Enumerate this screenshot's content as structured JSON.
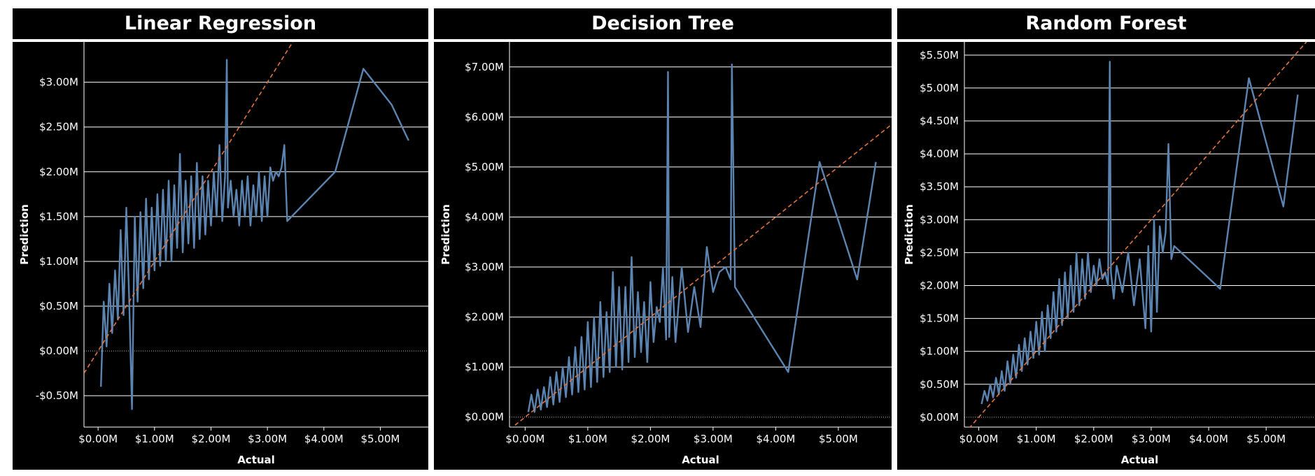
{
  "chart_data": [
    {
      "type": "line",
      "title": "Linear Regression",
      "xlabel": "Actual",
      "ylabel": "Prediction",
      "xlim": [
        -0.25,
        5.85
      ],
      "ylim": [
        -0.85,
        3.45
      ],
      "xticks": [
        0,
        1,
        2,
        3,
        4,
        5
      ],
      "xtick_labels": [
        "$0.00M",
        "$1.00M",
        "$2.00M",
        "$3.00M",
        "$4.00M",
        "$5.00M"
      ],
      "yticks": [
        -0.5,
        0,
        0.5,
        1,
        1.5,
        2,
        2.5,
        3
      ],
      "ytick_labels": [
        "-$0.50M",
        "$0.00M",
        "$0.50M",
        "$1.00M",
        "$1.50M",
        "$2.00M",
        "$2.50M",
        "$3.00M"
      ],
      "units": "$M",
      "grid": true,
      "series": [
        {
          "name": "",
          "color": "#5b84b1",
          "x": [
            0.05,
            0.1,
            0.15,
            0.2,
            0.25,
            0.3,
            0.35,
            0.4,
            0.45,
            0.5,
            0.55,
            0.6,
            0.65,
            0.7,
            0.75,
            0.8,
            0.85,
            0.9,
            0.95,
            1.0,
            1.05,
            1.1,
            1.15,
            1.2,
            1.25,
            1.3,
            1.35,
            1.4,
            1.45,
            1.5,
            1.55,
            1.6,
            1.65,
            1.7,
            1.75,
            1.8,
            1.85,
            1.9,
            1.95,
            2.0,
            2.05,
            2.1,
            2.15,
            2.2,
            2.25,
            2.28,
            2.3,
            2.35,
            2.4,
            2.45,
            2.5,
            2.55,
            2.6,
            2.65,
            2.7,
            2.75,
            2.8,
            2.85,
            2.9,
            2.95,
            3.0,
            3.05,
            3.1,
            3.15,
            3.2,
            3.25,
            3.3,
            3.35,
            4.2,
            4.7,
            5.2,
            5.5
          ],
          "y": [
            -0.4,
            0.55,
            0.05,
            0.75,
            0.2,
            0.9,
            0.35,
            1.35,
            0.4,
            1.6,
            0.6,
            -0.65,
            1.5,
            0.55,
            1.55,
            0.7,
            1.7,
            0.8,
            1.6,
            0.9,
            1.75,
            0.95,
            1.8,
            1.0,
            1.9,
            1.0,
            1.85,
            1.15,
            2.2,
            1.1,
            1.9,
            1.2,
            1.95,
            1.15,
            2.1,
            1.25,
            1.95,
            1.3,
            1.9,
            1.4,
            2.0,
            1.5,
            2.3,
            1.45,
            1.95,
            3.25,
            1.6,
            1.9,
            1.5,
            1.8,
            1.4,
            1.9,
            1.5,
            1.95,
            1.4,
            1.85,
            1.5,
            2.0,
            1.45,
            1.95,
            1.5,
            2.05,
            1.9,
            2.0,
            1.95,
            2.05,
            2.3,
            1.45,
            2.0,
            3.15,
            2.75,
            2.35
          ]
        }
      ],
      "reference_line": {
        "label": "",
        "color": "#e0743a",
        "style": "dashed",
        "slope": 1,
        "intercept": 0
      }
    },
    {
      "type": "line",
      "title": "Decision Tree",
      "xlabel": "Actual",
      "ylabel": "Prediction",
      "xlim": [
        -0.25,
        5.85
      ],
      "ylim": [
        -0.2,
        7.5
      ],
      "xticks": [
        0,
        1,
        2,
        3,
        4,
        5
      ],
      "xtick_labels": [
        "$0.00M",
        "$1.00M",
        "$2.00M",
        "$3.00M",
        "$4.00M",
        "$5.00M"
      ],
      "yticks": [
        0,
        1,
        2,
        3,
        4,
        5,
        6,
        7
      ],
      "ytick_labels": [
        "$0.00M",
        "$1.00M",
        "$2.00M",
        "$3.00M",
        "$4.00M",
        "$5.00M",
        "$6.00M",
        "$7.00M"
      ],
      "units": "$M",
      "grid": true,
      "series": [
        {
          "name": "",
          "color": "#5b84b1",
          "x": [
            0.05,
            0.1,
            0.15,
            0.2,
            0.25,
            0.3,
            0.35,
            0.4,
            0.45,
            0.5,
            0.55,
            0.6,
            0.65,
            0.7,
            0.75,
            0.8,
            0.85,
            0.9,
            0.95,
            1.0,
            1.05,
            1.1,
            1.15,
            1.2,
            1.25,
            1.3,
            1.35,
            1.4,
            1.45,
            1.5,
            1.55,
            1.6,
            1.65,
            1.7,
            1.75,
            1.8,
            1.85,
            1.9,
            1.95,
            2.0,
            2.05,
            2.1,
            2.15,
            2.2,
            2.25,
            2.28,
            2.3,
            2.35,
            2.4,
            2.5,
            2.6,
            2.7,
            2.8,
            2.9,
            3.0,
            3.1,
            3.2,
            3.28,
            3.3,
            3.35,
            4.2,
            4.7,
            5.3,
            5.6
          ],
          "y": [
            0.1,
            0.45,
            0.1,
            0.55,
            0.15,
            0.6,
            0.2,
            0.8,
            0.25,
            0.9,
            0.3,
            1.0,
            0.4,
            1.2,
            0.45,
            1.4,
            0.5,
            1.6,
            0.55,
            1.9,
            0.6,
            2.0,
            0.7,
            2.3,
            0.8,
            2.1,
            0.9,
            2.9,
            1.0,
            2.6,
            0.95,
            2.6,
            1.1,
            3.2,
            1.2,
            2.5,
            1.3,
            2.3,
            1.1,
            2.7,
            1.5,
            2.2,
            1.9,
            3.0,
            1.55,
            6.9,
            1.6,
            2.8,
            1.5,
            3.0,
            1.7,
            2.6,
            1.8,
            3.4,
            2.5,
            2.9,
            3.0,
            2.75,
            7.05,
            2.6,
            0.9,
            5.1,
            2.75,
            5.1
          ]
        }
      ],
      "reference_line": {
        "label": "",
        "color": "#e0743a",
        "style": "dashed",
        "slope": 1,
        "intercept": 0
      }
    },
    {
      "type": "line",
      "title": "Random Forest",
      "xlabel": "Actual",
      "ylabel": "Prediction",
      "xlim": [
        -0.25,
        5.85
      ],
      "ylim": [
        -0.15,
        5.7
      ],
      "xticks": [
        0,
        1,
        2,
        3,
        4,
        5
      ],
      "xtick_labels": [
        "$0.00M",
        "$1.00M",
        "$2.00M",
        "$3.00M",
        "$4.00M",
        "$5.00M"
      ],
      "yticks": [
        0,
        0.5,
        1,
        1.5,
        2,
        2.5,
        3,
        3.5,
        4,
        4.5,
        5,
        5.5
      ],
      "ytick_labels": [
        "$0.00M",
        "$0.50M",
        "$1.00M",
        "$1.50M",
        "$2.00M",
        "$2.50M",
        "$3.00M",
        "$3.50M",
        "$4.00M",
        "$4.50M",
        "$5.00M",
        "$5.50M"
      ],
      "units": "$M",
      "grid": true,
      "series": [
        {
          "name": "",
          "color": "#5b84b1",
          "x": [
            0.05,
            0.1,
            0.15,
            0.2,
            0.25,
            0.3,
            0.35,
            0.4,
            0.45,
            0.5,
            0.55,
            0.6,
            0.65,
            0.7,
            0.75,
            0.8,
            0.85,
            0.9,
            0.95,
            1.0,
            1.05,
            1.1,
            1.15,
            1.2,
            1.25,
            1.3,
            1.35,
            1.4,
            1.45,
            1.5,
            1.55,
            1.6,
            1.65,
            1.7,
            1.75,
            1.8,
            1.85,
            1.9,
            1.95,
            2.0,
            2.05,
            2.1,
            2.15,
            2.2,
            2.25,
            2.28,
            2.3,
            2.35,
            2.4,
            2.5,
            2.6,
            2.7,
            2.8,
            2.9,
            2.95,
            3.0,
            3.05,
            3.1,
            3.15,
            3.2,
            3.25,
            3.3,
            3.35,
            3.4,
            4.2,
            4.7,
            5.3,
            5.55
          ],
          "y": [
            0.2,
            0.4,
            0.25,
            0.5,
            0.3,
            0.6,
            0.35,
            0.7,
            0.4,
            0.85,
            0.5,
            0.95,
            0.6,
            1.1,
            0.7,
            1.2,
            0.8,
            1.3,
            0.9,
            1.45,
            0.95,
            1.6,
            1.0,
            1.7,
            1.2,
            1.9,
            1.3,
            2.1,
            1.4,
            2.2,
            1.5,
            2.3,
            1.6,
            2.5,
            1.7,
            2.4,
            1.8,
            2.5,
            1.9,
            2.3,
            2.0,
            2.4,
            2.1,
            2.2,
            2.0,
            5.4,
            2.2,
            1.8,
            2.3,
            1.9,
            2.5,
            1.7,
            2.4,
            1.35,
            2.6,
            1.3,
            3.0,
            1.6,
            2.9,
            2.5,
            2.8,
            4.15,
            2.4,
            2.6,
            1.95,
            5.15,
            3.2,
            4.9
          ]
        }
      ],
      "reference_line": {
        "label": "",
        "color": "#e0743a",
        "style": "dashed",
        "slope": 1,
        "intercept": 0
      }
    }
  ]
}
